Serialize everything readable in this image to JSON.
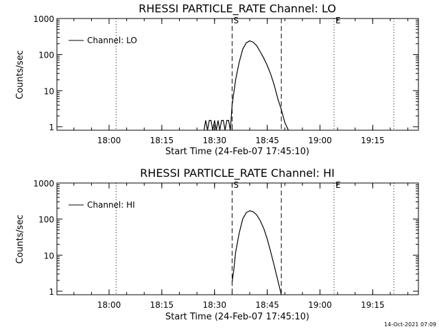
{
  "footer_timestamp": "14-Oct-2021 07:09",
  "chart_data": [
    {
      "type": "line",
      "title": "RHESSI PARTICLE_RATE Channel: LO",
      "xlabel": "Start Time (24-Feb-07 17:45:10)",
      "ylabel": "Counts/sec",
      "y_scale": "log",
      "ylim": [
        0.8,
        1000
      ],
      "y_ticks": [
        "1",
        "10",
        "100",
        "1000"
      ],
      "x_ticks": [
        "18:00",
        "18:15",
        "18:30",
        "18:45",
        "19:00",
        "19:15"
      ],
      "legend": {
        "position": "top-left",
        "entries": [
          "Channel: LO"
        ]
      },
      "markers": [
        {
          "label": "",
          "time": "18:02",
          "style": "dotted"
        },
        {
          "label": "S",
          "time": "18:35",
          "style": "dashed"
        },
        {
          "label": "",
          "time": "18:49",
          "style": "dashed"
        },
        {
          "label": "E",
          "time": "19:04",
          "style": "dotted"
        },
        {
          "label": "",
          "time": "19:21",
          "style": "dotted"
        }
      ],
      "series": [
        {
          "name": "Channel: LO",
          "x": [
            "18:27",
            "18:27.5",
            "18:28",
            "18:28.5",
            "18:29",
            "18:29.5",
            "18:30",
            "18:30.5",
            "18:31",
            "18:31.5",
            "18:32",
            "18:32.5",
            "18:33",
            "18:33.5",
            "18:34",
            "18:34.5",
            "18:35",
            "18:36",
            "18:37",
            "18:38",
            "18:39",
            "18:40",
            "18:41",
            "18:42",
            "18:43",
            "18:44",
            "18:45",
            "18:46",
            "18:47",
            "18:48",
            "18:49",
            "18:50",
            "18:51"
          ],
          "y": [
            0.8,
            1.5,
            0.8,
            1.5,
            1.5,
            0.8,
            1.5,
            0.8,
            1.5,
            0.8,
            1.5,
            1.5,
            0.8,
            1.5,
            1.5,
            0.8,
            4,
            20,
            60,
            140,
            210,
            240,
            220,
            175,
            120,
            80,
            50,
            28,
            14,
            6,
            3,
            1.3,
            0.8
          ]
        }
      ]
    },
    {
      "type": "line",
      "title": "RHESSI PARTICLE_RATE Channel: HI",
      "xlabel": "Start Time (24-Feb-07 17:45:10)",
      "ylabel": "Counts/sec",
      "y_scale": "log",
      "ylim": [
        0.8,
        1000
      ],
      "y_ticks": [
        "1",
        "10",
        "100",
        "1000"
      ],
      "x_ticks": [
        "18:00",
        "18:15",
        "18:30",
        "18:45",
        "19:00",
        "19:15"
      ],
      "legend": {
        "position": "top-left",
        "entries": [
          "Channel: HI"
        ]
      },
      "markers": [
        {
          "label": "",
          "time": "18:02",
          "style": "dotted"
        },
        {
          "label": "S",
          "time": "18:35",
          "style": "dashed"
        },
        {
          "label": "",
          "time": "18:49",
          "style": "dashed"
        },
        {
          "label": "E",
          "time": "19:04",
          "style": "dotted"
        },
        {
          "label": "",
          "time": "19:21",
          "style": "dotted"
        }
      ],
      "series": [
        {
          "name": "Channel: HI",
          "x": [
            "18:35",
            "18:35.5",
            "18:36",
            "18:37",
            "18:38",
            "18:39",
            "18:40",
            "18:41",
            "18:42",
            "18:43",
            "18:44",
            "18:45",
            "18:46",
            "18:47",
            "18:48",
            "18:49"
          ],
          "y": [
            1.8,
            4,
            12,
            40,
            100,
            150,
            170,
            160,
            130,
            90,
            55,
            28,
            12,
            5,
            2,
            0.8
          ]
        }
      ]
    }
  ]
}
